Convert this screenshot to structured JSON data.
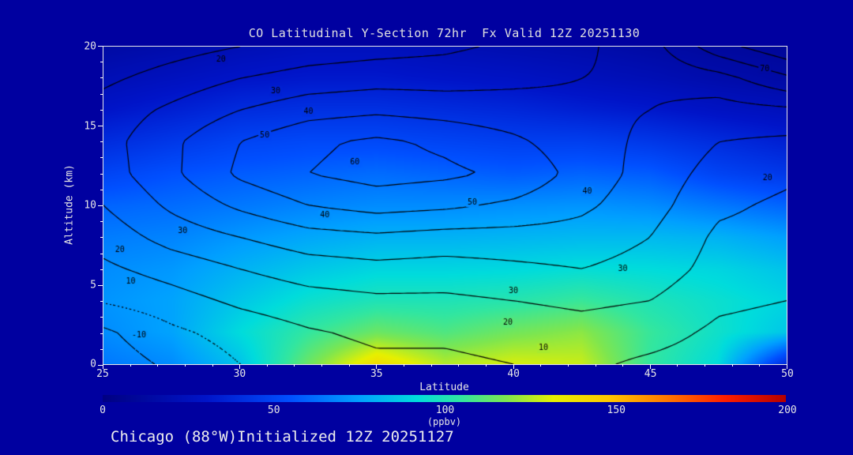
{
  "window": {
    "background": "#0000a0",
    "text_color": "#e6e6e6"
  },
  "title": "CO Latitudinal Y-Section 72hr  Fx Valid 12Z 20251130",
  "footer": "Chicago (88°W)Initialized 12Z 20251127",
  "axes": {
    "x_label": "Latitude",
    "y_label": "Altitude (km)",
    "x_ticks": [
      "25",
      "30",
      "35",
      "40",
      "45",
      "50"
    ],
    "y_ticks": [
      "20",
      "15",
      "10",
      "5",
      "0"
    ]
  },
  "colorbar": {
    "label": "(ppbv)",
    "ticks": [
      "0",
      "50",
      "100",
      "150",
      "200"
    ],
    "min": 0,
    "max": 200,
    "stops": [
      [
        0,
        "#000082"
      ],
      [
        30,
        "#0014c8"
      ],
      [
        55,
        "#0050ff"
      ],
      [
        75,
        "#00a0ff"
      ],
      [
        92,
        "#00dcdc"
      ],
      [
        105,
        "#32e6a0"
      ],
      [
        118,
        "#7de650"
      ],
      [
        132,
        "#e6f000"
      ],
      [
        148,
        "#ffc800"
      ],
      [
        165,
        "#ff7800"
      ],
      [
        182,
        "#ff1e00"
      ],
      [
        200,
        "#b40000"
      ]
    ]
  },
  "chart_data": {
    "type": "heatmap",
    "title": "CO Latitudinal Y-Section 72hr  Fx Valid 12Z 20251130",
    "subtitle": "Chicago (88°W)Initialized 12Z 20251127",
    "xlabel": "Latitude",
    "ylabel": "Altitude (km)",
    "fill_units": "ppbv",
    "x_range": [
      25,
      50
    ],
    "y_range": [
      0,
      20
    ],
    "fill_range": [
      0,
      200
    ],
    "x": [
      25,
      27.5,
      30,
      32.5,
      35,
      37.5,
      40,
      42.5,
      45,
      47.5,
      50
    ],
    "y": [
      0,
      2,
      4,
      6,
      8,
      10,
      12,
      14,
      16,
      18,
      20
    ],
    "fill_grid": [
      [
        65,
        70,
        85,
        115,
        140,
        125,
        130,
        128,
        105,
        92,
        40
      ],
      [
        70,
        76,
        92,
        105,
        115,
        110,
        116,
        120,
        106,
        96,
        86
      ],
      [
        72,
        76,
        86,
        95,
        100,
        100,
        102,
        106,
        100,
        95,
        90
      ],
      [
        70,
        73,
        80,
        86,
        90,
        90,
        91,
        93,
        92,
        90,
        85
      ],
      [
        66,
        68,
        73,
        77,
        80,
        80,
        81,
        82,
        82,
        80,
        75
      ],
      [
        60,
        62,
        65,
        68,
        70,
        70,
        71,
        72,
        70,
        65,
        60
      ],
      [
        50,
        55,
        58,
        60,
        62,
        60,
        58,
        60,
        58,
        50,
        45
      ],
      [
        40,
        45,
        50,
        52,
        52,
        50,
        48,
        48,
        45,
        40,
        35
      ],
      [
        30,
        35,
        40,
        42,
        42,
        40,
        38,
        35,
        32,
        28,
        25
      ],
      [
        22,
        26,
        30,
        32,
        32,
        30,
        28,
        25,
        22,
        18,
        15
      ],
      [
        15,
        18,
        22,
        25,
        25,
        22,
        20,
        18,
        15,
        12,
        10
      ]
    ],
    "contour_levels": [
      -10,
      0,
      10,
      20,
      30,
      40,
      50,
      60,
      70
    ],
    "contour_grid": [
      [
        -16,
        -8,
        0,
        5,
        8,
        8,
        10,
        12,
        8,
        5,
        3
      ],
      [
        -12,
        -2,
        4,
        9,
        12,
        12,
        14,
        16,
        14,
        8,
        6
      ],
      [
        1,
        6,
        12,
        16,
        18,
        18,
        20,
        22,
        20,
        12,
        10
      ],
      [
        8,
        14,
        20,
        25,
        27,
        26,
        28,
        30,
        26,
        16,
        14
      ],
      [
        14,
        24,
        30,
        36,
        38,
        36,
        36,
        36,
        30,
        18,
        16
      ],
      [
        20,
        32,
        42,
        50,
        54,
        52,
        48,
        42,
        34,
        22,
        18
      ],
      [
        25,
        38,
        52,
        60,
        64,
        62,
        58,
        46,
        36,
        26,
        22
      ],
      [
        26,
        38,
        50,
        58,
        62,
        58,
        52,
        44,
        38,
        30,
        28
      ],
      [
        24,
        32,
        40,
        46,
        48,
        46,
        44,
        42,
        40,
        36,
        38
      ],
      [
        18,
        24,
        30,
        34,
        36,
        36,
        38,
        40,
        42,
        46,
        58
      ],
      [
        12,
        16,
        20,
        24,
        26,
        28,
        32,
        38,
        46,
        66,
        78
      ]
    ],
    "contour_labels": [
      {
        "v": 20,
        "lat": 29.3,
        "alt": 19.2
      },
      {
        "v": 30,
        "lat": 31.3,
        "alt": 17.2
      },
      {
        "v": 40,
        "lat": 32.5,
        "alt": 15.9
      },
      {
        "v": 50,
        "lat": 30.9,
        "alt": 14.4
      },
      {
        "v": 60,
        "lat": 34.2,
        "alt": 12.7
      },
      {
        "v": 40,
        "lat": 33.1,
        "alt": 9.4
      },
      {
        "v": 30,
        "lat": 27.9,
        "alt": 8.4
      },
      {
        "v": 20,
        "lat": 25.6,
        "alt": 7.2
      },
      {
        "v": 10,
        "lat": 26.0,
        "alt": 5.2
      },
      {
        "v": 50,
        "lat": 38.5,
        "alt": 10.2
      },
      {
        "v": 40,
        "lat": 42.7,
        "alt": 10.9
      },
      {
        "v": 30,
        "lat": 44.0,
        "alt": 6.0
      },
      {
        "v": 30,
        "lat": 40.0,
        "alt": 4.6
      },
      {
        "v": 20,
        "lat": 39.8,
        "alt": 2.6
      },
      {
        "v": 10,
        "lat": 41.1,
        "alt": 1.0
      },
      {
        "v": 70,
        "lat": 49.2,
        "alt": 18.6
      },
      {
        "v": 20,
        "lat": 49.3,
        "alt": 11.7
      },
      {
        "v": -10,
        "lat": 26.3,
        "alt": 1.8
      }
    ]
  }
}
